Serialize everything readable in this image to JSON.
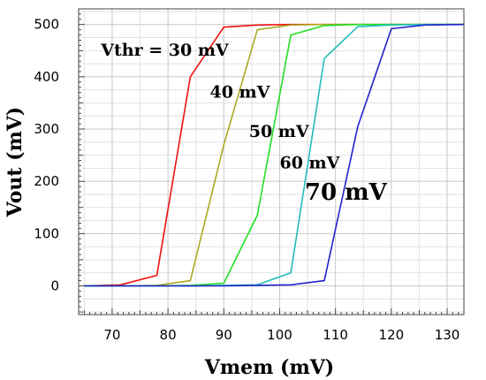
{
  "chart_data": {
    "type": "line",
    "title": "",
    "xlabel": "Vmem (mV)",
    "ylabel": "Vout (mV)",
    "xlim": [
      64,
      133
    ],
    "ylim": [
      -55,
      530
    ],
    "x_ticks": [
      70,
      80,
      90,
      100,
      110,
      120,
      130
    ],
    "y_ticks": [
      0,
      100,
      200,
      300,
      400,
      500
    ],
    "grid": true,
    "legend": "none",
    "series": [
      {
        "color": "#ee1111",
        "x": [
          65,
          71.5,
          78,
          84,
          90,
          96,
          102,
          108,
          114,
          120,
          126,
          133
        ],
        "y": [
          0,
          2,
          20,
          400,
          495,
          499,
          500,
          500,
          500,
          500,
          500,
          500
        ]
      },
      {
        "color": "#aaaa22",
        "x": [
          65,
          71.5,
          78,
          84,
          90,
          96,
          102,
          108,
          114,
          120,
          126,
          133
        ],
        "y": [
          0,
          0,
          1,
          10,
          270,
          490,
          499,
          500,
          500,
          500,
          500,
          500
        ]
      },
      {
        "color": "#22dd22",
        "x": [
          65,
          71.5,
          78,
          84,
          90,
          96,
          102,
          108,
          114,
          120,
          126,
          133
        ],
        "y": [
          0,
          0,
          0,
          1,
          5,
          135,
          480,
          498,
          500,
          500,
          500,
          500
        ]
      },
      {
        "color": "#22bbbb",
        "x": [
          65,
          71.5,
          78,
          84,
          90,
          96,
          102,
          108,
          114,
          120,
          126,
          133
        ],
        "y": [
          0,
          0,
          0,
          0,
          1,
          2,
          25,
          435,
          496,
          499,
          500,
          500
        ]
      },
      {
        "color": "#2222cc",
        "x": [
          65,
          71.5,
          78,
          84,
          90,
          96,
          102,
          108,
          114,
          120,
          126,
          133
        ],
        "y": [
          0,
          0,
          0,
          0,
          0,
          1,
          2,
          10,
          305,
          492,
          499,
          500
        ]
      }
    ],
    "annotations": [
      {
        "text": "Vthr = 30 mV",
        "x": 68,
        "y": 440
      },
      {
        "text": "40 mV",
        "x": 87.5,
        "y": 360
      },
      {
        "text": "50 mV",
        "x": 94.5,
        "y": 285
      },
      {
        "text": "60 mV",
        "x": 100,
        "y": 225
      },
      {
        "text": "70 mV",
        "x": 104.5,
        "y": 165
      }
    ]
  }
}
